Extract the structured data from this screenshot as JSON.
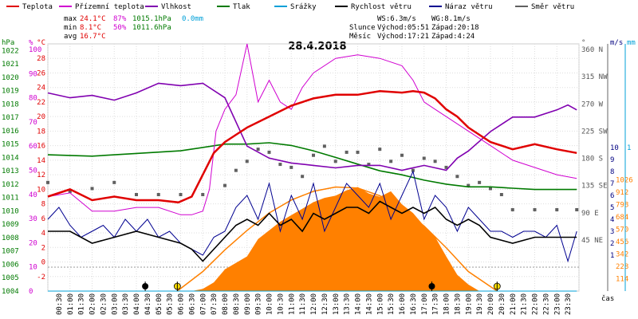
{
  "legend": [
    {
      "name": "Teplota",
      "color": "#e00000"
    },
    {
      "name": "Přízemní teplota",
      "color": "#d000d0"
    },
    {
      "name": "Vlhkost",
      "color": "#8000b0"
    },
    {
      "name": "Tlak",
      "color": "#007a00"
    },
    {
      "name": "Srážky",
      "color": "#00a0d8"
    },
    {
      "name": "Rychlost větru",
      "color": "#000000"
    },
    {
      "name": "Náraz větru",
      "color": "#000090"
    },
    {
      "name": "Směr větru",
      "color": "#606060"
    }
  ],
  "stats": {
    "max_label": "max",
    "max_temp": "24.1°C",
    "max_hum": "87%",
    "max_press": "1015.1hPa",
    "max_rain": "0.0mm",
    "min_label": "min",
    "min_temp": "8.1°C",
    "min_hum": "50%",
    "min_press": "1011.6hPa",
    "avg_label": "avg",
    "avg_temp": "16.7°C"
  },
  "wind_info": {
    "ws": "WS:6.3m/s",
    "wg": "WG:8.1m/s"
  },
  "sun_info": {
    "label": "Slunce",
    "rise": "Východ:05:51",
    "set": "Západ:20:18"
  },
  "moon_info": {
    "label": "Měsíc",
    "rise": "Východ:17:21",
    "set": "Západ:4:24"
  },
  "colors": {
    "temp": "#e00000",
    "ground": "#d000d0",
    "humidity": "#8000b0",
    "pressure": "#007a00",
    "rain": "#00a0d8",
    "wind": "#000000",
    "gust": "#000090",
    "direction": "#606060",
    "solar": "#ff8000",
    "grid": "#dddddd",
    "pct_axis": "#d000d0",
    "temp_axis": "#e00000",
    "press_axis": "#007a00",
    "wind_axis": "#000080",
    "solar_axis": "#ff8000"
  },
  "chart_data": {
    "type": "line",
    "title": "28.4.2018",
    "xlabel": "čas",
    "x_ticks": [
      "00:30",
      "01:00",
      "01:30",
      "02:00",
      "02:30",
      "03:00",
      "03:30",
      "04:00",
      "04:30",
      "05:00",
      "05:30",
      "06:00",
      "06:30",
      "07:00",
      "07:30",
      "08:00",
      "08:30",
      "09:00",
      "09:30",
      "10:00",
      "10:30",
      "11:00",
      "11:30",
      "12:00",
      "12:30",
      "13:00",
      "13:30",
      "14:00",
      "14:30",
      "15:00",
      "15:30",
      "16:00",
      "16:30",
      "17:00",
      "17:30",
      "18:00",
      "18:30",
      "19:00",
      "19:30",
      "20:00",
      "20:30",
      "21:00",
      "21:30",
      "22:00",
      "22:30",
      "23:00",
      "23:30"
    ],
    "x_hours": [
      0,
      1,
      2,
      3,
      4,
      5,
      6,
      7,
      8,
      9,
      10,
      11,
      12,
      13,
      14,
      15,
      16,
      17,
      18,
      19,
      20,
      21,
      22,
      23,
      24
    ],
    "axes": {
      "pressure_hpa": {
        "label": "hPa",
        "ticks": [
          "1022",
          "1021",
          "1020",
          "1019",
          "1018",
          "1017",
          "1016",
          "1015",
          "1014",
          "1013",
          "1012",
          "1011",
          "1010",
          "1009",
          "1008",
          "1007",
          "1006",
          "1005",
          "1004"
        ],
        "range": [
          1004,
          1022.5
        ]
      },
      "humidity_pct": {
        "label": "%",
        "ticks": [
          "100",
          "90",
          "80",
          "70",
          "60",
          "50",
          "40",
          "30",
          "20",
          "10",
          "0"
        ],
        "range": [
          0,
          100
        ]
      },
      "temperature_c": {
        "label": "°C",
        "ticks": [
          "28",
          "26",
          "24",
          "22",
          "20",
          "18",
          "16",
          "14",
          "12",
          "10",
          "8",
          "6",
          "4",
          "2",
          "0",
          "-2"
        ],
        "range": [
          -4,
          30
        ]
      },
      "direction_deg": {
        "label": "°",
        "ticks": [
          "360 N",
          "315 NW",
          "270 W",
          "225 SW",
          "180 S",
          "135 SE",
          "90 E",
          "45 NE"
        ],
        "range": [
          0,
          360
        ]
      },
      "wind_ms": {
        "label": "m/s",
        "ticks": [
          "10",
          "9",
          "8",
          "7",
          "6",
          "5",
          "4",
          "3",
          "2",
          "1"
        ],
        "range": [
          0,
          10
        ]
      },
      "rain_mm": {
        "label": "mm",
        "ticks": [
          "1"
        ],
        "range": [
          0,
          1
        ]
      },
      "solar_wm2": {
        "label": "",
        "ticks": [
          "1026",
          "912",
          "798",
          "684",
          "570",
          "456",
          "342",
          "228",
          "114"
        ],
        "range": [
          0,
          1140
        ]
      }
    },
    "series": [
      {
        "name": "Teplota",
        "unit": "°C",
        "x": [
          0,
          1,
          2,
          3,
          4,
          5,
          5.9,
          6.5,
          7,
          7.5,
          8,
          8.5,
          9,
          10,
          11,
          12,
          13,
          14,
          15,
          16,
          16.5,
          17,
          17.5,
          18,
          18.5,
          19,
          19.5,
          20,
          21,
          22,
          23,
          23.9
        ],
        "y": [
          9,
          10,
          8.5,
          9,
          8.5,
          8.5,
          8.2,
          9,
          12,
          15,
          16.5,
          17.5,
          18.5,
          20,
          21.5,
          22.5,
          23,
          23,
          23.5,
          23.3,
          23.5,
          23.3,
          22.5,
          21,
          20,
          18.5,
          17.5,
          16.5,
          15.5,
          16.2,
          15.5,
          15
        ]
      },
      {
        "name": "Přízemní teplota",
        "unit": "°C",
        "x": [
          0,
          1,
          2,
          3,
          4,
          5,
          6,
          6.5,
          7,
          7.3,
          7.6,
          8,
          8.5,
          9,
          9.5,
          10,
          10.5,
          11,
          11.5,
          12,
          13,
          14,
          15,
          16,
          16.5,
          17,
          17.5,
          18,
          19,
          20,
          21,
          22,
          23,
          23.9
        ],
        "y": [
          9,
          9.5,
          7,
          7,
          7.5,
          7.5,
          6.5,
          6.5,
          7,
          10,
          18,
          21,
          23,
          30,
          22,
          25,
          22,
          21,
          24,
          26,
          28,
          28.5,
          28,
          27,
          25,
          22,
          21,
          20,
          18,
          16,
          14,
          13,
          12,
          11.5
        ]
      },
      {
        "name": "Vlhkost",
        "unit": "%",
        "x": [
          0,
          1,
          2,
          3,
          4,
          5,
          6,
          7,
          8,
          9,
          10,
          11,
          12,
          13,
          14,
          15,
          16,
          17,
          18,
          18.5,
          19,
          20,
          21,
          22,
          23,
          23.5,
          23.9
        ],
        "y": [
          82,
          80,
          81,
          79,
          82,
          86,
          85,
          86,
          80,
          60,
          55,
          53,
          52,
          51,
          52,
          52,
          50,
          52,
          50,
          55,
          58,
          66,
          72,
          72,
          75,
          77,
          75
        ]
      },
      {
        "name": "Tlak",
        "unit": "hPa",
        "x": [
          0,
          2,
          4,
          6,
          8,
          9,
          10,
          11,
          12,
          13,
          14,
          15,
          16,
          17,
          18,
          19,
          20,
          21,
          22,
          23,
          23.9
        ],
        "y": [
          1014.2,
          1014.1,
          1014.3,
          1014.5,
          1015.0,
          1015.0,
          1015.1,
          1014.9,
          1014.5,
          1014.0,
          1013.5,
          1013.0,
          1012.7,
          1012.3,
          1012.0,
          1011.8,
          1011.8,
          1011.7,
          1011.6,
          1011.6,
          1011.6
        ]
      },
      {
        "name": "Srážky",
        "unit": "mm",
        "x": [
          0,
          23.9
        ],
        "y": [
          0,
          0
        ]
      },
      {
        "name": "Rychlost větru",
        "unit": "m/s",
        "x": [
          0,
          1,
          2,
          3,
          4,
          5,
          6,
          6.5,
          7,
          7.5,
          8,
          8.5,
          9,
          9.5,
          10,
          10.5,
          11,
          11.5,
          12,
          12.5,
          13,
          13.5,
          14,
          14.5,
          15,
          15.5,
          16,
          16.5,
          17,
          17.5,
          18,
          18.5,
          19,
          19.5,
          20,
          21,
          22,
          23,
          23.9
        ],
        "y": [
          3,
          3,
          2,
          2.5,
          3,
          2.5,
          2,
          1.5,
          0.5,
          1.5,
          2.5,
          3.5,
          4,
          3.5,
          4.5,
          3.5,
          4,
          3,
          4.5,
          4,
          4.5,
          5,
          5,
          4.5,
          5.5,
          5,
          4.5,
          5,
          4.5,
          5,
          4,
          3.5,
          4,
          3.5,
          2.5,
          2,
          2.5,
          2.5,
          2.5
        ]
      },
      {
        "name": "Náraz větru",
        "unit": "m/s",
        "x": [
          0,
          0.5,
          1,
          1.5,
          2,
          2.5,
          3,
          3.5,
          4,
          4.5,
          5,
          5.5,
          6,
          6.5,
          7,
          7.5,
          8,
          8.5,
          9,
          9.5,
          10,
          10.5,
          11,
          11.5,
          12,
          12.5,
          13,
          13.5,
          14,
          14.5,
          15,
          15.5,
          16,
          16.5,
          17,
          17.5,
          18,
          18.5,
          19,
          19.5,
          20,
          20.5,
          21,
          21.5,
          22,
          22.5,
          23,
          23.5,
          23.9
        ],
        "y": [
          4,
          5,
          3.5,
          2.5,
          3,
          3.5,
          2.5,
          4,
          3,
          4,
          2.5,
          3,
          2,
          1.5,
          1,
          2.5,
          3,
          5,
          6,
          4,
          7,
          3,
          6,
          4,
          7,
          3,
          5,
          7,
          6,
          5,
          7,
          4,
          6,
          8,
          4,
          6,
          5,
          3,
          5,
          4,
          3,
          3,
          2.5,
          3,
          3,
          2.5,
          3.5,
          0.5,
          3
        ]
      },
      {
        "name": "Směr větru",
        "unit": "°",
        "x": [
          0,
          1,
          2,
          3,
          4,
          5,
          6,
          7,
          8,
          8.5,
          9,
          9.5,
          10,
          10.5,
          11,
          11.5,
          12,
          12.5,
          13,
          13.5,
          14,
          14.5,
          15,
          15.5,
          16,
          16.5,
          17,
          17.5,
          18,
          18.5,
          19,
          19.5,
          20,
          20.5,
          21,
          22,
          23,
          23.9
        ],
        "y": [
          140,
          125,
          130,
          140,
          120,
          120,
          120,
          120,
          135,
          160,
          175,
          195,
          190,
          170,
          165,
          150,
          185,
          200,
          175,
          190,
          190,
          170,
          195,
          175,
          185,
          160,
          180,
          175,
          165,
          150,
          135,
          140,
          130,
          120,
          95,
          95,
          95,
          95
        ]
      },
      {
        "name": "Sluneční záření",
        "unit": "W/m²",
        "x": [
          6.5,
          7,
          7.5,
          8,
          8.5,
          9,
          9.5,
          10,
          10.5,
          11,
          11.5,
          12,
          12.5,
          13,
          13.5,
          14,
          14.5,
          15,
          15.5,
          16,
          16.5,
          17,
          17.5,
          18,
          18.5,
          19,
          19.5
        ],
        "y": [
          0,
          20,
          80,
          200,
          260,
          320,
          480,
          560,
          640,
          700,
          760,
          820,
          860,
          880,
          930,
          960,
          900,
          870,
          920,
          800,
          720,
          600,
          500,
          320,
          150,
          60,
          0
        ]
      },
      {
        "name": "Teoretické záření",
        "unit": "W/m²",
        "x": [
          5.85,
          7,
          8,
          9,
          10,
          11,
          12,
          13,
          14,
          15,
          16,
          17,
          18,
          19,
          20.3
        ],
        "y": [
          0,
          180,
          380,
          560,
          720,
          840,
          920,
          960,
          950,
          880,
          760,
          600,
          400,
          180,
          0
        ]
      }
    ],
    "markers": [
      {
        "type": "moon-set",
        "x": 4.4
      },
      {
        "type": "sun-rise",
        "x": 5.85
      },
      {
        "type": "moon-rise",
        "x": 17.35
      },
      {
        "type": "sun-set",
        "x": 20.3
      }
    ]
  }
}
